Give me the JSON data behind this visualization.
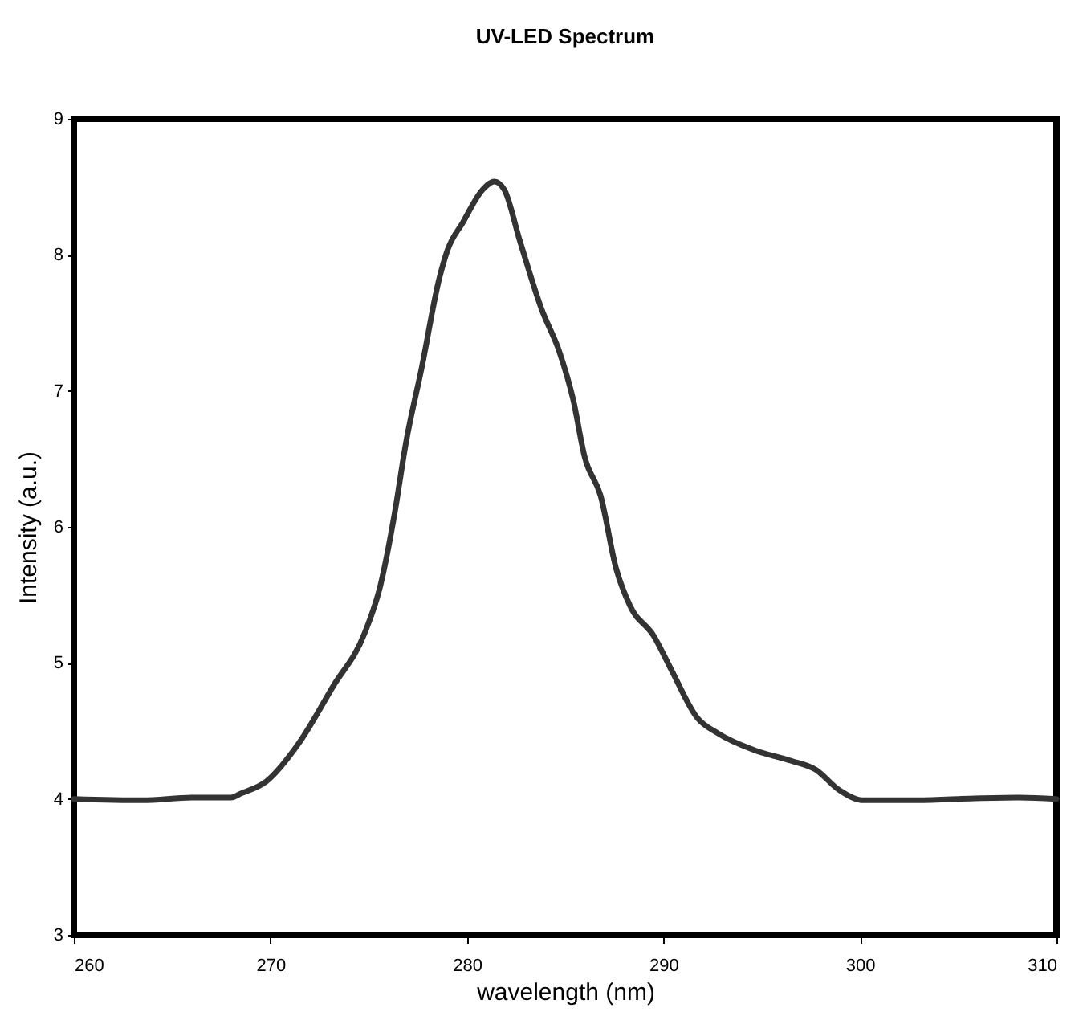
{
  "chart_data": {
    "type": "line",
    "title": "UV-LED Spectrum",
    "xlabel": "wavelength (nm)",
    "ylabel": "Intensity (a.u.)",
    "x": [
      260,
      263.5,
      266,
      268,
      268.5,
      269.8,
      271.4,
      273.2,
      274.8,
      275.6,
      276.3,
      276.9,
      277.7,
      278.6,
      279.0,
      279.8,
      280.8,
      281.4,
      281.9,
      282.7,
      283.8,
      284.7,
      285.4,
      286.0,
      286.8,
      287.6,
      288.3,
      289.5,
      290.4,
      291.7,
      292.8,
      294.6,
      296.5,
      297.8,
      298.9,
      300.2,
      302.6,
      305,
      308,
      310
    ],
    "series": [
      {
        "color": "#333333",
        "values": [
          4.0,
          3.99,
          4.01,
          4.01,
          4.04,
          4.13,
          4.4,
          4.83,
          5.22,
          5.57,
          6.08,
          6.62,
          7.17,
          7.83,
          8.03,
          8.24,
          8.48,
          8.54,
          8.48,
          8.1,
          7.6,
          7.29,
          6.94,
          6.51,
          6.23,
          5.69,
          5.42,
          5.2,
          4.95,
          4.6,
          4.48,
          4.36,
          4.28,
          4.21,
          4.07,
          3.99,
          3.99,
          4.0,
          4.01,
          4.0
        ]
      }
    ],
    "xlim": [
      260,
      310
    ],
    "xticks": [
      260,
      270,
      280,
      290,
      300,
      310
    ],
    "ylim": [
      3,
      9
    ],
    "yticks": [
      3,
      4,
      5,
      6,
      7,
      8,
      9
    ],
    "grid": false,
    "line_style": "solid"
  }
}
